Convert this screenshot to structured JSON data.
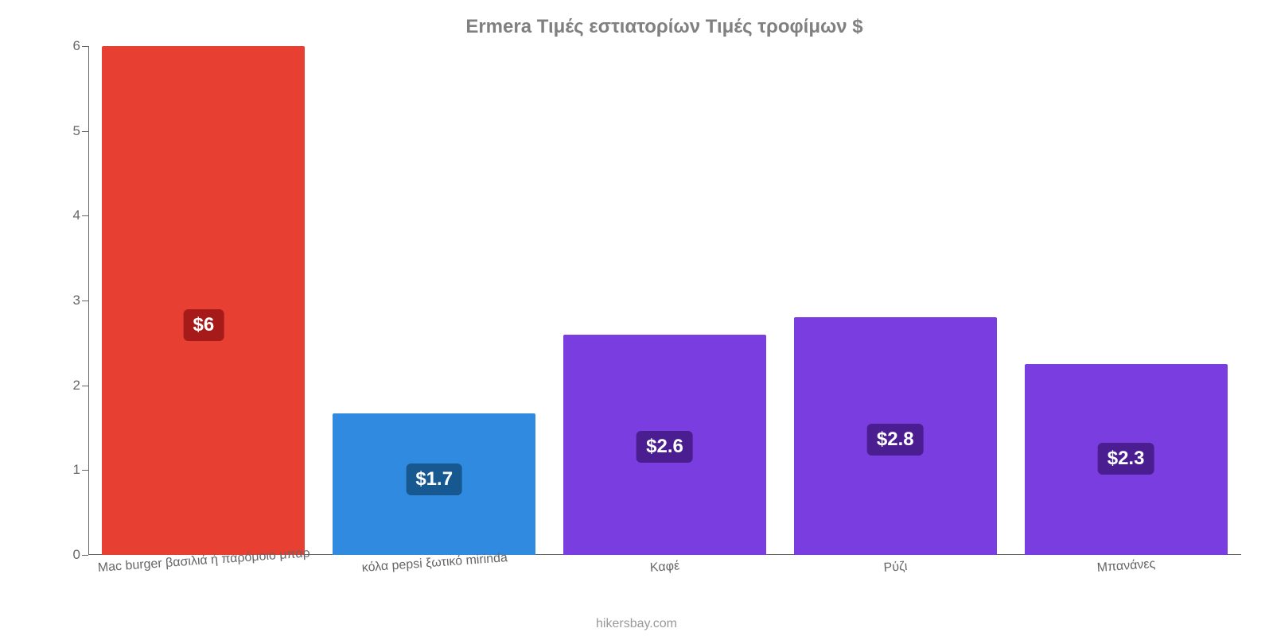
{
  "chart": {
    "type": "bar",
    "title": "Ermera Τιμές εστιατορίων Τιμές τροφίμων $",
    "title_color": "#808080",
    "title_fontsize": 24,
    "background_color": "#ffffff",
    "axis_color": "#666666",
    "tick_fontsize": 17,
    "tick_color": "#666666",
    "ylim_min": 0,
    "ylim_max": 6,
    "ytick_step": 1,
    "yticks": [
      {
        "v": 0,
        "label": "0"
      },
      {
        "v": 1,
        "label": "1"
      },
      {
        "v": 2,
        "label": "2"
      },
      {
        "v": 3,
        "label": "3"
      },
      {
        "v": 4,
        "label": "4"
      },
      {
        "v": 5,
        "label": "5"
      },
      {
        "v": 6,
        "label": "6"
      }
    ],
    "bar_width_pct": 88,
    "xlabel_fontsize": 16,
    "xlabel_rotation_deg": -4,
    "value_label_fontsize": 24,
    "value_label_text_color": "#ffffff",
    "bars": [
      {
        "category": "Mac burger βασιλιά ή παρόμοιο μπαρ",
        "value": 6,
        "value_label": "$6",
        "bar_color": "#e74032",
        "badge_color": "#a61b19"
      },
      {
        "category": "κόλα pepsi ξωτικό mirinda",
        "value": 1.67,
        "value_label": "$1.7",
        "bar_color": "#2f8ae0",
        "badge_color": "#175890"
      },
      {
        "category": "Καφέ",
        "value": 2.6,
        "value_label": "$2.6",
        "bar_color": "#7a3de0",
        "badge_color": "#4a1e91"
      },
      {
        "category": "Ρύζι",
        "value": 2.8,
        "value_label": "$2.8",
        "bar_color": "#7a3de0",
        "badge_color": "#4a1e91"
      },
      {
        "category": "Μπανάνες",
        "value": 2.25,
        "value_label": "$2.3",
        "bar_color": "#7a3de0",
        "badge_color": "#4a1e91"
      }
    ],
    "watermark": "hikersbay.com",
    "watermark_color": "#999999",
    "watermark_fontsize": 16
  }
}
